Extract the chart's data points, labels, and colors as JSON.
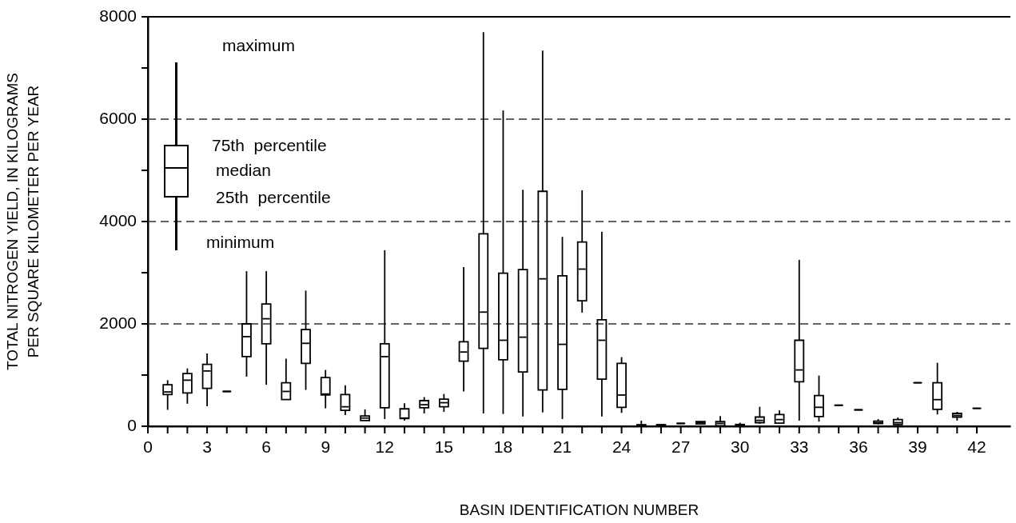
{
  "chart_data": {
    "type": "box",
    "xlabel": "BASIN IDENTIFICATION NUMBER",
    "ylabel": "TOTAL NITROGEN YIELD, IN KILOGRAMS\nPER SQUARE KILOMETER PER YEAR",
    "x": [
      1,
      2,
      3,
      4,
      5,
      6,
      7,
      8,
      9,
      10,
      11,
      12,
      13,
      14,
      15,
      16,
      17,
      18,
      19,
      20,
      21,
      22,
      23,
      24,
      25,
      26,
      27,
      28,
      29,
      30,
      31,
      32,
      33,
      34,
      35,
      36,
      37,
      38,
      39,
      40,
      41,
      42
    ],
    "color": "#000000",
    "boxes": [
      {
        "low": 320,
        "q1": 620,
        "median": 670,
        "q3": 810,
        "high": 900
      },
      {
        "low": 440,
        "q1": 650,
        "median": 900,
        "q3": 1030,
        "high": 1130
      },
      {
        "low": 390,
        "q1": 740,
        "median": 1080,
        "q3": 1210,
        "high": 1420
      },
      {
        "low": 680,
        "q1": 680,
        "median": 680,
        "q3": 680,
        "high": 680
      },
      {
        "low": 970,
        "q1": 1360,
        "median": 1750,
        "q3": 2000,
        "high": 3030
      },
      {
        "low": 810,
        "q1": 1610,
        "median": 2100,
        "q3": 2390,
        "high": 3030
      },
      {
        "low": 520,
        "q1": 520,
        "median": 680,
        "q3": 850,
        "high": 1320
      },
      {
        "low": 710,
        "q1": 1230,
        "median": 1620,
        "q3": 1890,
        "high": 2650
      },
      {
        "low": 350,
        "q1": 610,
        "median": 630,
        "q3": 950,
        "high": 1100
      },
      {
        "low": 220,
        "q1": 310,
        "median": 380,
        "q3": 620,
        "high": 800
      },
      {
        "low": 110,
        "q1": 110,
        "median": 160,
        "q3": 200,
        "high": 330
      },
      {
        "low": 140,
        "q1": 360,
        "median": 1360,
        "q3": 1610,
        "high": 3440
      },
      {
        "low": 110,
        "q1": 150,
        "median": 160,
        "q3": 340,
        "high": 450
      },
      {
        "low": 250,
        "q1": 360,
        "median": 420,
        "q3": 500,
        "high": 570
      },
      {
        "low": 280,
        "q1": 380,
        "median": 460,
        "q3": 530,
        "high": 630
      },
      {
        "low": 680,
        "q1": 1270,
        "median": 1450,
        "q3": 1650,
        "high": 3110
      },
      {
        "low": 250,
        "q1": 1520,
        "median": 2230,
        "q3": 3760,
        "high": 7700
      },
      {
        "low": 240,
        "q1": 1300,
        "median": 1680,
        "q3": 2990,
        "high": 6170
      },
      {
        "low": 190,
        "q1": 1060,
        "median": 1740,
        "q3": 3060,
        "high": 4620
      },
      {
        "low": 270,
        "q1": 710,
        "median": 2880,
        "q3": 4590,
        "high": 7340
      },
      {
        "low": 140,
        "q1": 720,
        "median": 1600,
        "q3": 2940,
        "high": 3700
      },
      {
        "low": 2220,
        "q1": 2450,
        "median": 3070,
        "q3": 3600,
        "high": 4610
      },
      {
        "low": 190,
        "q1": 920,
        "median": 1680,
        "q3": 2080,
        "high": 3800
      },
      {
        "low": 260,
        "q1": 370,
        "median": 610,
        "q3": 1230,
        "high": 1350
      },
      {
        "low": 0,
        "q1": 5,
        "median": 15,
        "q3": 30,
        "high": 110
      },
      {
        "low": 20,
        "q1": 20,
        "median": 25,
        "q3": 30,
        "high": 30
      },
      {
        "low": 55,
        "q1": 55,
        "median": 55,
        "q3": 55,
        "high": 55
      },
      {
        "low": 35,
        "q1": 45,
        "median": 70,
        "q3": 90,
        "high": 90
      },
      {
        "low": 0,
        "q1": 10,
        "median": 55,
        "q3": 90,
        "high": 200
      },
      {
        "low": 0,
        "q1": 10,
        "median": 20,
        "q3": 35,
        "high": 70
      },
      {
        "low": 45,
        "q1": 70,
        "median": 115,
        "q3": 180,
        "high": 380
      },
      {
        "low": 60,
        "q1": 60,
        "median": 130,
        "q3": 230,
        "high": 310
      },
      {
        "low": 110,
        "q1": 870,
        "median": 1100,
        "q3": 1680,
        "high": 3250
      },
      {
        "low": 90,
        "q1": 190,
        "median": 370,
        "q3": 600,
        "high": 990
      },
      {
        "low": 410,
        "q1": 410,
        "median": 410,
        "q3": 410,
        "high": 410
      },
      {
        "low": 320,
        "q1": 320,
        "median": 320,
        "q3": 320,
        "high": 320
      },
      {
        "low": 35,
        "q1": 55,
        "median": 70,
        "q3": 100,
        "high": 140
      },
      {
        "low": 20,
        "q1": 35,
        "median": 70,
        "q3": 130,
        "high": 170
      },
      {
        "low": 850,
        "q1": 850,
        "median": 850,
        "q3": 850,
        "high": 850
      },
      {
        "low": 230,
        "q1": 330,
        "median": 520,
        "q3": 850,
        "high": 1240
      },
      {
        "low": 110,
        "q1": 180,
        "median": 210,
        "q3": 250,
        "high": 280
      },
      {
        "low": 350,
        "q1": 350,
        "median": 350,
        "q3": 350,
        "high": 350
      }
    ],
    "xlim": [
      0,
      43.7
    ],
    "xticks": [
      0,
      {
        "value": 1,
        "label": null
      },
      {
        "value": 2,
        "label": null
      },
      3,
      {
        "value": 4,
        "label": null
      },
      {
        "value": 5,
        "label": null
      },
      6,
      {
        "value": 7,
        "label": null
      },
      {
        "value": 8,
        "label": null
      },
      9,
      {
        "value": 10,
        "label": null
      },
      {
        "value": 11,
        "label": null
      },
      12,
      {
        "value": 13,
        "label": null
      },
      {
        "value": 14,
        "label": null
      },
      15,
      {
        "value": 16,
        "label": null
      },
      {
        "value": 17,
        "label": null
      },
      18,
      {
        "value": 19,
        "label": null
      },
      {
        "value": 20,
        "label": null
      },
      21,
      {
        "value": 22,
        "label": null
      },
      {
        "value": 23,
        "label": null
      },
      24,
      {
        "value": 25,
        "label": null
      },
      {
        "value": 26,
        "label": null
      },
      27,
      {
        "value": 28,
        "label": null
      },
      {
        "value": 29,
        "label": null
      },
      30,
      {
        "value": 31,
        "label": null
      },
      {
        "value": 32,
        "label": null
      },
      33,
      {
        "value": 34,
        "label": null
      },
      {
        "value": 35,
        "label": null
      },
      36,
      {
        "value": 37,
        "label": null
      },
      {
        "value": 38,
        "label": null
      },
      39,
      {
        "value": 40,
        "label": null
      },
      {
        "value": 41,
        "label": null
      },
      42
    ],
    "ylim": [
      0,
      8000
    ],
    "yticks": [
      0,
      {
        "value": 1000,
        "label": null
      },
      2000,
      {
        "value": 3000,
        "label": null
      },
      4000,
      {
        "value": 5000,
        "label": null
      },
      6000,
      {
        "value": 7000,
        "label": null
      },
      8000
    ],
    "grid": "y",
    "line_style": "dashed",
    "legend": false,
    "annotations": [
      "maximum",
      "75th  percentile",
      "median",
      "25th  percentile",
      "minimum"
    ]
  }
}
